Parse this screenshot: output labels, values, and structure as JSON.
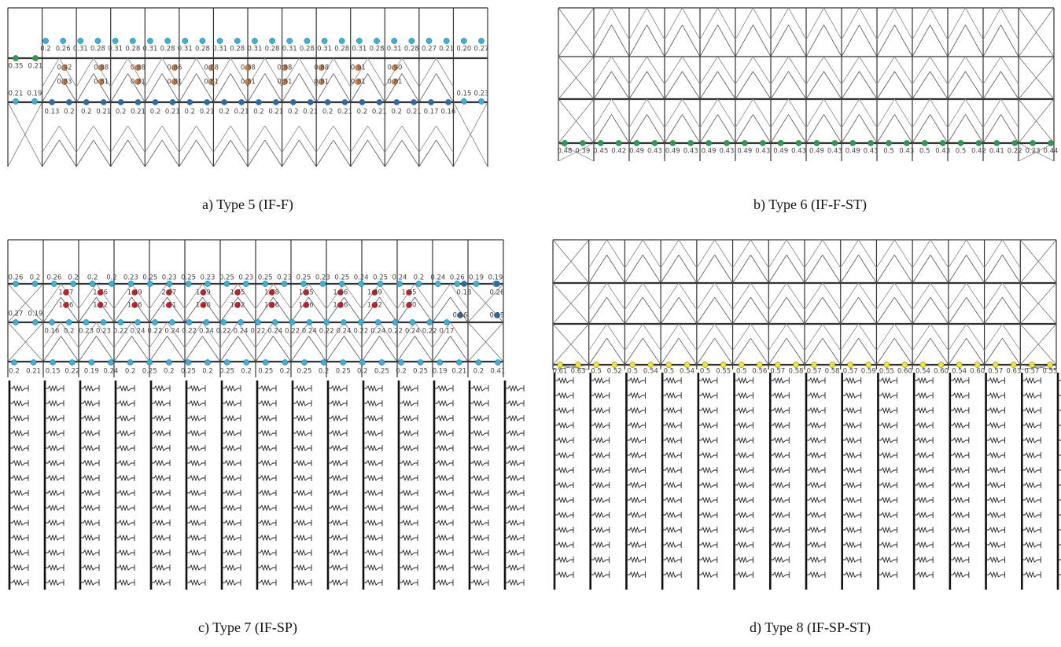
{
  "panels": [
    {
      "caption": "a) Type 5 (IF-F)",
      "rows": [
        {
          "color": "#29b6e8",
          "labels": [
            "0.2",
            "0.26",
            "0.31",
            "0.28",
            "0.31",
            "0.28",
            "0.31",
            "0.28",
            "0.31",
            "0.28",
            "0.31",
            "0.28",
            "0.31",
            "0.28",
            "0.31",
            "0.28",
            "0.31",
            "0.28",
            "0.31",
            "0.28",
            "0.31",
            "0.28",
            "0.27",
            "0.21",
            "0.20",
            "0.27"
          ]
        },
        {
          "color": "#1fa34a",
          "labels": [
            "0.35",
            "0.21"
          ]
        },
        {
          "color": "#e8843a",
          "labels": [
            "0.92",
            "0.88",
            "0.88",
            "0.86",
            "0.88",
            "0.88",
            "0.88",
            "0.88",
            "0.91",
            "0.90"
          ]
        },
        {
          "color": "#e8843a",
          "labels": [
            "0.83",
            "0.81",
            "0.81",
            "0.81",
            "0.81",
            "0.81",
            "0.81",
            "0.81",
            "0.81",
            "0.81"
          ]
        },
        {
          "color": "#29b6e8",
          "labels": [
            "0.21",
            "0.19"
          ]
        },
        {
          "color": "#29b6e8",
          "labels": [
            "0.15",
            "0.23"
          ]
        },
        {
          "color": "#1f6fb5",
          "labels": [
            "0.13",
            "0.2",
            "0.2",
            "0.21",
            "0.2",
            "0.21",
            "0.2",
            "0.21",
            "0.2",
            "0.21",
            "0.2",
            "0.21",
            "0.2",
            "0.21",
            "0.2",
            "0.21",
            "0.2",
            "0.21",
            "0.2",
            "0.21",
            "0.2",
            "0.21",
            "0.17",
            "0.16"
          ]
        }
      ]
    },
    {
      "caption": "b) Type 6 (IF-F-ST)",
      "rows": [
        {
          "color": "#1fa34a",
          "labels": [
            "0.48",
            "0.39",
            "0.45",
            "0.42",
            "0.49",
            "0.43",
            "0.49",
            "0.43",
            "0.49",
            "0.43",
            "0.49",
            "0.43",
            "0.49",
            "0.43",
            "0.49",
            "0.43",
            "0.49",
            "0.43",
            "0.5",
            "0.43",
            "0.5",
            "0.43",
            "0.5",
            "0.42",
            "0.41",
            "0.22",
            "0.23",
            "0.44"
          ]
        }
      ]
    },
    {
      "caption": "c) Type 7 (IF-SP)",
      "rows": [
        {
          "color": "#29b6e8",
          "labels": [
            "0.26",
            "0.2",
            "0.26",
            "0.2",
            "0.2",
            "0.2",
            "0.23",
            "0.25",
            "0.23",
            "0.25",
            "0.23",
            "0.25",
            "0.23",
            "0.25",
            "0.23",
            "0.25",
            "0.23",
            "0.25",
            "0.24",
            "0.25",
            "0.24",
            "0.2",
            "0.24",
            "0.26",
            "0.19",
            "0.19"
          ]
        },
        {
          "color": "#e8141c",
          "labels": [
            "1.77",
            "1.76",
            "1.49",
            "2.07",
            "1.59",
            "1.75",
            "1.78",
            "1.45",
            "1.46",
            "1.49",
            "1.45"
          ]
        },
        {
          "color": "#e8141c",
          "labels": [
            "1.26",
            "1.22",
            "1.26",
            "1.21",
            "1.26",
            "1.22",
            "1.26",
            "1.26",
            "1.26",
            "1.22",
            "1.20"
          ]
        },
        {
          "color": "#29b6e8",
          "labels": [
            "0.27",
            "0.19"
          ]
        },
        {
          "color": "#1f6fb5",
          "labels": [
            "0.18",
            "0.26"
          ]
        },
        {
          "color": "#1f6fb5",
          "labels": [
            "0.16",
            "0.19"
          ]
        },
        {
          "color": "#29b6e8",
          "labels": [
            "0.16",
            "0.2",
            "0.23",
            "0.23",
            "0.22",
            "0.24",
            "0.22",
            "0.24",
            "0.22",
            "0.24",
            "0.22",
            "0.24",
            "0.22",
            "0.24",
            "0.22",
            "0.24",
            "0.22",
            "0.24",
            "0.22",
            "0.24",
            "0.22",
            "0.24",
            "0.22",
            "0.17"
          ]
        },
        {
          "color": "#29b6e8",
          "labels": [
            "0.2",
            "0.21",
            "0.15",
            "0.22",
            "0.19",
            "0.24",
            "0.2",
            "0.25",
            "0.2",
            "0.25",
            "0.2",
            "0.25",
            "0.2",
            "0.25",
            "0.2",
            "0.25",
            "0.2",
            "0.25",
            "0.2",
            "0.25",
            "0.2",
            "0.25",
            "0.19",
            "0.21",
            "0.2",
            "0.41"
          ]
        }
      ]
    },
    {
      "caption": "d) Type 8 (IF-SP-ST)",
      "rows": [
        {
          "color": "#f5e61a",
          "labels": [
            "0.61",
            "0.63",
            "0.5",
            "0.52",
            "0.5",
            "0.54",
            "0.5",
            "0.54",
            "0.5",
            "0.55",
            "0.5",
            "0.56",
            "0.57",
            "0.58",
            "0.57",
            "0.58",
            "0.57",
            "0.59",
            "0.55",
            "0.60",
            "0.54",
            "0.60",
            "0.54",
            "0.60",
            "0.57",
            "0.63",
            "0.57",
            "0.55"
          ]
        }
      ]
    }
  ]
}
